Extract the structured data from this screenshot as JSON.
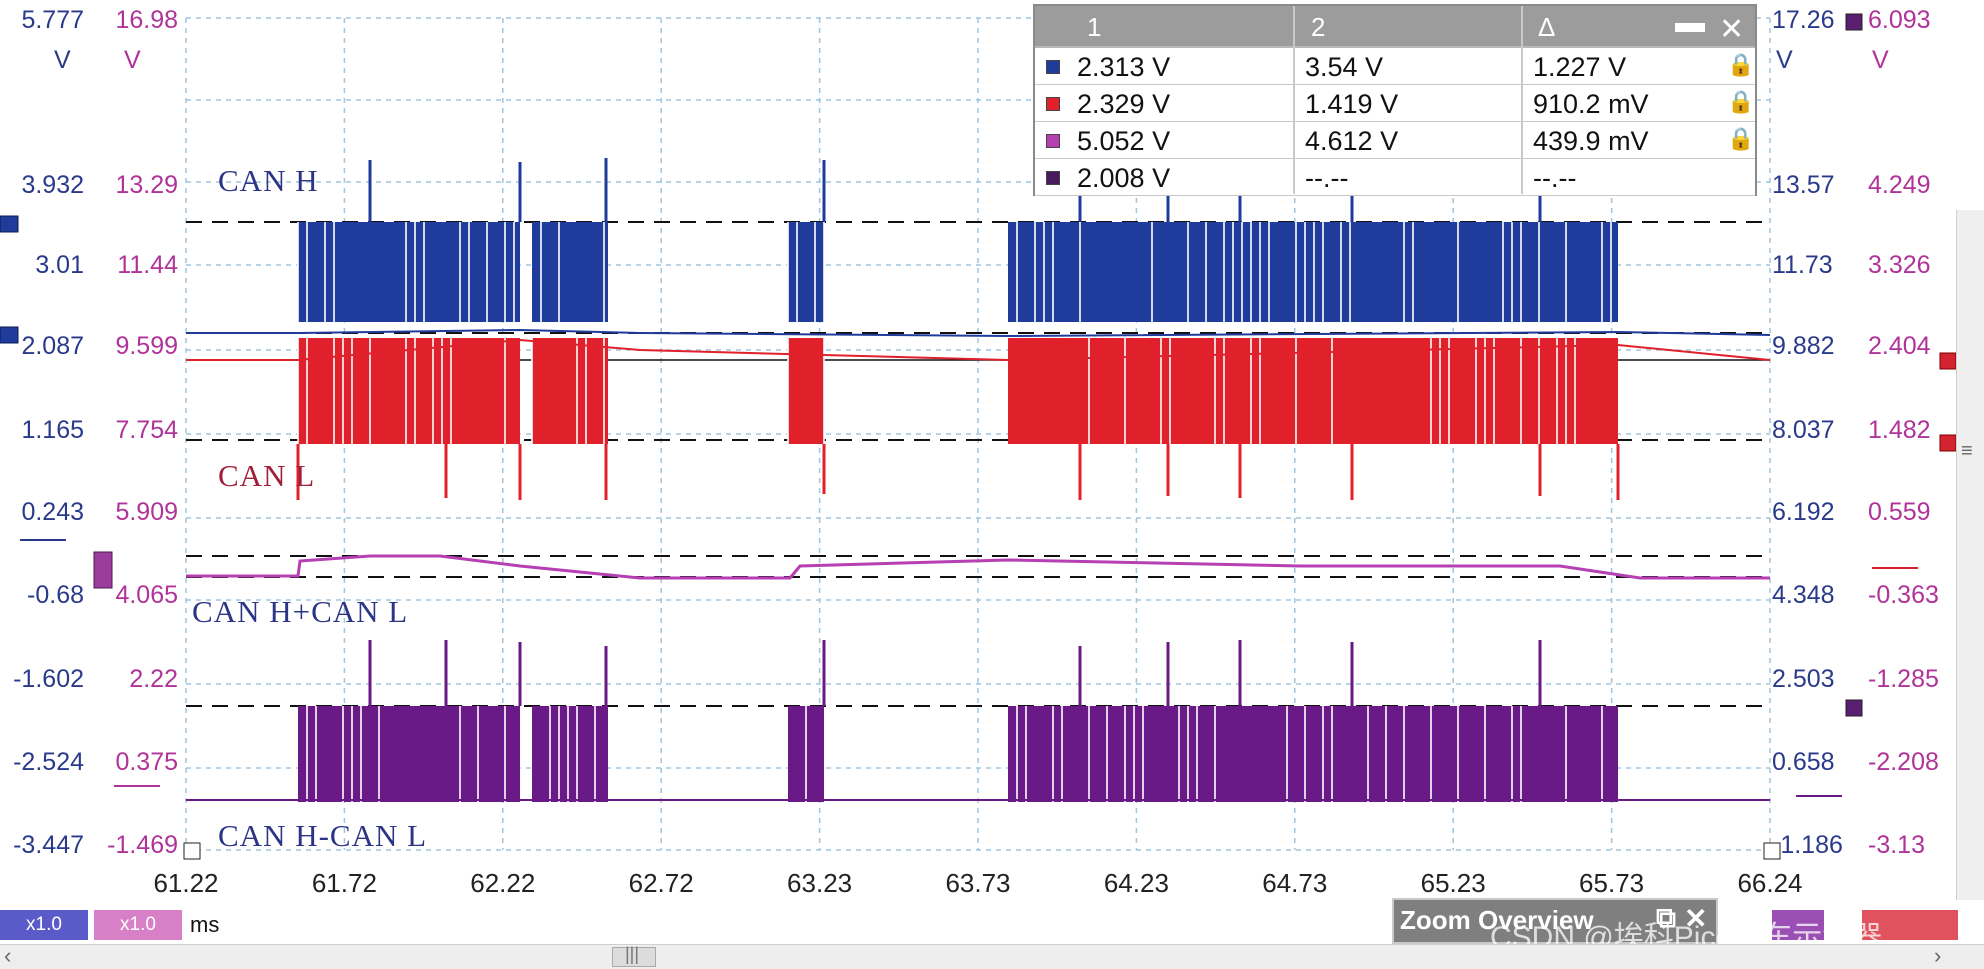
{
  "axes": {
    "ch1_left": [
      "5.777",
      "3.932",
      "3.01",
      "2.087",
      "1.165",
      "0.243",
      "-0.68",
      "-1.602",
      "-2.524",
      "-3.447"
    ],
    "ch2_left": [
      "16.98",
      "13.29",
      "11.44",
      "9.599",
      "7.754",
      "5.909",
      "4.065",
      "2.22",
      "0.375",
      "-1.469"
    ],
    "ch3_right": [
      "17.26",
      "13.57",
      "11.73",
      "9.882",
      "8.037",
      "6.192",
      "4.348",
      "2.503",
      "0.658",
      "-1.186"
    ],
    "ch4_right": [
      "6.093",
      "4.249",
      "3.326",
      "2.404",
      "1.482",
      "0.559",
      "-0.363",
      "-1.285",
      "-2.208",
      "-3.13"
    ],
    "unit_left_1": "V",
    "unit_left_2": "V",
    "unit_right_1": "V",
    "unit_right_2": "V",
    "x_ticks": [
      "61.22",
      "61.72",
      "62.22",
      "62.72",
      "63.23",
      "63.73",
      "64.23",
      "64.73",
      "65.23",
      "65.73",
      "66.24"
    ],
    "x_unit": "ms"
  },
  "colors": {
    "ch1": "#1f3b9c",
    "ch2": "#e0202a",
    "ch3": "#b53fb3",
    "ch4": "#6a1a86",
    "grid": "#9fc6e0",
    "axis_blue": "#2a3a8a",
    "axis_pink": "#b03399",
    "label_blue": "#2b3585",
    "label_red": "#a0203b"
  },
  "trace_labels": {
    "can_h": "CAN H",
    "can_l": "CAN L",
    "sum": "CAN H+CAN L",
    "diff": "CAN H-CAN L"
  },
  "measurements": {
    "headers": [
      "1",
      "2",
      "Δ"
    ],
    "rows": [
      {
        "color": "#1f3b9c",
        "v1": "2.313 V",
        "v2": "3.54 V",
        "delta": "1.227 V"
      },
      {
        "color": "#e0202a",
        "v1": "2.329 V",
        "v2": "1.419 V",
        "delta": "910.2 mV"
      },
      {
        "color": "#b53fb3",
        "v1": "5.052 V",
        "v2": "4.612 V",
        "delta": "439.9 mV"
      },
      {
        "color": "#4a1a5e",
        "v1": "2.008 V",
        "v2": "--.--",
        "delta": "--.--"
      }
    ]
  },
  "scale_badges": [
    "x1.0",
    "x1.0"
  ],
  "zoom_overview": "Zoom Overview",
  "watermark": "CSDN @埃科Pico汽车示波器"
}
